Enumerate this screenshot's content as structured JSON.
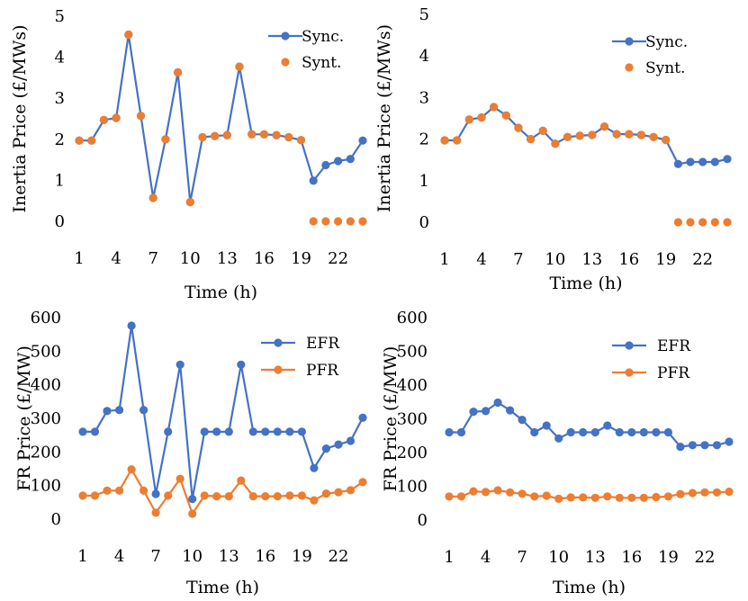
{
  "chart_data": [
    {
      "type": "line",
      "title": "",
      "xlabel": "Time (h)",
      "ylabel": "Inertia Price (£/MWs)",
      "x": [
        1,
        2,
        3,
        4,
        5,
        6,
        7,
        8,
        9,
        10,
        11,
        12,
        13,
        14,
        15,
        16,
        17,
        18,
        19,
        20,
        21,
        22,
        23,
        24
      ],
      "x_ticks": [
        1,
        4,
        7,
        10,
        13,
        16,
        19,
        22
      ],
      "ylim": [
        0,
        5
      ],
      "y_ticks": [
        0,
        1,
        2,
        3,
        4,
        5
      ],
      "legend_position": "top-right",
      "series": [
        {
          "name": "Sync.",
          "color": "#4472c4",
          "style": "line-markers",
          "values": [
            1.97,
            1.97,
            2.47,
            2.52,
            4.55,
            2.57,
            0.57,
            2.0,
            3.63,
            0.47,
            2.05,
            2.08,
            2.1,
            3.77,
            2.12,
            2.12,
            2.1,
            2.05,
            1.98,
            0.99,
            1.37,
            1.47,
            1.52,
            1.97
          ]
        },
        {
          "name": "Synt.",
          "color": "#ed7d31",
          "style": "markers",
          "values": [
            1.97,
            1.97,
            2.47,
            2.52,
            4.55,
            2.57,
            0.57,
            2.0,
            3.63,
            0.47,
            2.05,
            2.08,
            2.1,
            3.77,
            2.12,
            2.12,
            2.1,
            2.05,
            1.98,
            0,
            0,
            0,
            0,
            0
          ]
        }
      ]
    },
    {
      "type": "line",
      "title": "",
      "xlabel": "Time (h)",
      "ylabel": "Inertia Price (£/MWs)",
      "x": [
        1,
        2,
        3,
        4,
        5,
        6,
        7,
        8,
        9,
        10,
        11,
        12,
        13,
        14,
        15,
        16,
        17,
        18,
        19,
        20,
        21,
        22,
        23,
        24
      ],
      "x_ticks": [
        1,
        4,
        7,
        10,
        13,
        16,
        19,
        22
      ],
      "ylim": [
        0,
        5
      ],
      "y_ticks": [
        0,
        1,
        2,
        3,
        4,
        5
      ],
      "legend_position": "top-right",
      "series": [
        {
          "name": "Sync.",
          "color": "#4472c4",
          "style": "line-markers",
          "values": [
            1.97,
            1.97,
            2.47,
            2.52,
            2.77,
            2.57,
            2.27,
            2.0,
            2.2,
            1.89,
            2.05,
            2.08,
            2.1,
            2.3,
            2.12,
            2.12,
            2.1,
            2.05,
            1.98,
            1.4,
            1.45,
            1.45,
            1.45,
            1.52
          ]
        },
        {
          "name": "Synt.",
          "color": "#ed7d31",
          "style": "markers",
          "values": [
            1.97,
            1.97,
            2.47,
            2.52,
            2.77,
            2.57,
            2.27,
            2.0,
            2.2,
            1.89,
            2.05,
            2.08,
            2.1,
            2.3,
            2.12,
            2.12,
            2.1,
            2.05,
            1.98,
            0,
            0,
            0,
            0,
            0
          ]
        }
      ]
    },
    {
      "type": "line",
      "title": "",
      "xlabel": "Time (h)",
      "ylabel": "FR Price (£/MW)",
      "x": [
        1,
        2,
        3,
        4,
        5,
        6,
        7,
        8,
        9,
        10,
        11,
        12,
        13,
        14,
        15,
        16,
        17,
        18,
        19,
        20,
        21,
        22,
        23,
        24
      ],
      "x_ticks": [
        1,
        4,
        7,
        10,
        13,
        16,
        19,
        22
      ],
      "ylim": [
        0,
        600
      ],
      "y_ticks": [
        0,
        100,
        200,
        300,
        400,
        500,
        600
      ],
      "legend_position": "top-right",
      "series": [
        {
          "name": "EFR",
          "color": "#4472c4",
          "style": "line-markers",
          "values": [
            260,
            260,
            322,
            325,
            576,
            325,
            75,
            260,
            460,
            60,
            260,
            260,
            260,
            460,
            260,
            260,
            260,
            260,
            260,
            152,
            210,
            222,
            233,
            302
          ]
        },
        {
          "name": "PFR",
          "color": "#ed7d31",
          "style": "line-markers",
          "values": [
            70,
            70,
            85,
            85,
            148,
            85,
            19,
            70,
            120,
            16,
            70,
            68,
            68,
            115,
            68,
            68,
            68,
            70,
            70,
            56,
            76,
            80,
            86,
            110
          ]
        }
      ]
    },
    {
      "type": "line",
      "title": "",
      "xlabel": "Time (h)",
      "ylabel": "FR Price (£/MW)",
      "x": [
        1,
        2,
        3,
        4,
        5,
        6,
        7,
        8,
        9,
        10,
        11,
        12,
        13,
        14,
        15,
        16,
        17,
        18,
        19,
        20,
        21,
        22,
        23,
        24
      ],
      "x_ticks": [
        1,
        4,
        7,
        10,
        13,
        16,
        19,
        22
      ],
      "ylim": [
        0,
        600
      ],
      "y_ticks": [
        0,
        100,
        200,
        300,
        400,
        500,
        600
      ],
      "legend_position": "top-right",
      "series": [
        {
          "name": "EFR",
          "color": "#4472c4",
          "style": "line-markers",
          "values": [
            260,
            260,
            321,
            323,
            348,
            325,
            297,
            260,
            280,
            242,
            260,
            260,
            260,
            280,
            260,
            260,
            260,
            260,
            260,
            217,
            222,
            222,
            222,
            232
          ]
        },
        {
          "name": "PFR",
          "color": "#ed7d31",
          "style": "line-markers",
          "values": [
            70,
            70,
            85,
            83,
            88,
            82,
            78,
            70,
            72,
            63,
            67,
            67,
            66,
            70,
            66,
            66,
            66,
            68,
            70,
            77,
            80,
            82,
            82,
            84
          ]
        }
      ]
    }
  ]
}
